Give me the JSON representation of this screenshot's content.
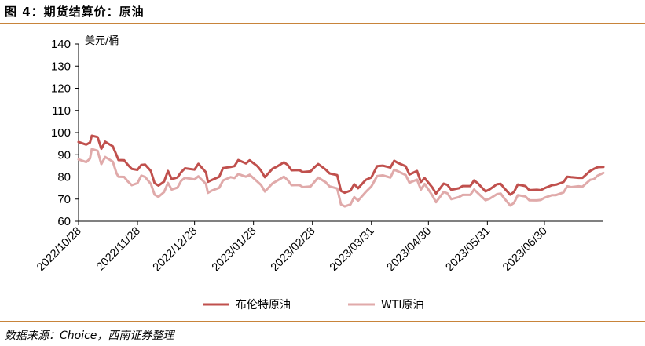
{
  "figure": {
    "title": "图 4：期货结算价：原油",
    "source": "数据来源：Choice，西南证券整理"
  },
  "colors": {
    "rule": "#c8843a",
    "brent": "#c0504d",
    "wti": "#e0aaaa",
    "axis": "#000000"
  },
  "chart_data": {
    "type": "line",
    "ylabel": "美元/桶",
    "ylim": [
      60,
      140
    ],
    "yticks": [
      60,
      70,
      80,
      90,
      100,
      110,
      120,
      130,
      140
    ],
    "xlim": [
      "2022-10-28",
      "2023-07-31"
    ],
    "xtick_labels": [
      "2022/10/28",
      "2022/11/28",
      "2022/12/28",
      "2023/01/28",
      "2023/02/28",
      "2023/03/31",
      "2023/04/30",
      "2023/05/31",
      "2023/06/30"
    ],
    "xtick_dates": [
      "2022-10-28",
      "2022-11-28",
      "2022-12-28",
      "2023-01-28",
      "2023-02-28",
      "2023-03-31",
      "2023-04-30",
      "2023-05-31",
      "2023-06-30"
    ],
    "grid": false,
    "legend_position": "bottom",
    "series": [
      {
        "name": "布伦特原油",
        "color": "#c0504d",
        "points": [
          [
            "2022-10-28",
            95.8
          ],
          [
            "2022-11-01",
            94.6
          ],
          [
            "2022-11-03",
            95.5
          ],
          [
            "2022-11-04",
            98.6
          ],
          [
            "2022-11-07",
            98.0
          ],
          [
            "2022-11-09",
            92.7
          ],
          [
            "2022-11-11",
            95.9
          ],
          [
            "2022-11-15",
            93.8
          ],
          [
            "2022-11-17",
            89.8
          ],
          [
            "2022-11-18",
            87.6
          ],
          [
            "2022-11-21",
            87.5
          ],
          [
            "2022-11-23",
            85.4
          ],
          [
            "2022-11-25",
            83.6
          ],
          [
            "2022-11-28",
            83.2
          ],
          [
            "2022-11-30",
            85.4
          ],
          [
            "2022-12-02",
            85.6
          ],
          [
            "2022-12-05",
            82.7
          ],
          [
            "2022-12-07",
            77.2
          ],
          [
            "2022-12-09",
            76.1
          ],
          [
            "2022-12-12",
            77.9
          ],
          [
            "2022-12-14",
            82.7
          ],
          [
            "2022-12-16",
            79.0
          ],
          [
            "2022-12-19",
            79.8
          ],
          [
            "2022-12-21",
            82.2
          ],
          [
            "2022-12-23",
            83.9
          ],
          [
            "2022-12-28",
            83.3
          ],
          [
            "2022-12-30",
            85.9
          ],
          [
            "2023-01-03",
            82.1
          ],
          [
            "2023-01-04",
            77.8
          ],
          [
            "2023-01-06",
            78.6
          ],
          [
            "2023-01-10",
            80.1
          ],
          [
            "2023-01-12",
            84.0
          ],
          [
            "2023-01-16",
            84.5
          ],
          [
            "2023-01-18",
            84.9
          ],
          [
            "2023-01-20",
            87.6
          ],
          [
            "2023-01-24",
            86.1
          ],
          [
            "2023-01-26",
            87.5
          ],
          [
            "2023-01-30",
            84.9
          ],
          [
            "2023-02-01",
            82.8
          ],
          [
            "2023-02-03",
            79.9
          ],
          [
            "2023-02-07",
            83.7
          ],
          [
            "2023-02-09",
            84.5
          ],
          [
            "2023-02-13",
            86.6
          ],
          [
            "2023-02-15",
            85.4
          ],
          [
            "2023-02-17",
            83.0
          ],
          [
            "2023-02-21",
            83.1
          ],
          [
            "2023-02-23",
            82.2
          ],
          [
            "2023-02-27",
            82.5
          ],
          [
            "2023-03-01",
            84.3
          ],
          [
            "2023-03-03",
            85.8
          ],
          [
            "2023-03-07",
            83.3
          ],
          [
            "2023-03-09",
            81.6
          ],
          [
            "2023-03-13",
            80.8
          ],
          [
            "2023-03-15",
            73.7
          ],
          [
            "2023-03-17",
            72.9
          ],
          [
            "2023-03-20",
            73.8
          ],
          [
            "2023-03-22",
            76.7
          ],
          [
            "2023-03-24",
            74.9
          ],
          [
            "2023-03-28",
            78.7
          ],
          [
            "2023-03-31",
            79.8
          ],
          [
            "2023-04-03",
            84.9
          ],
          [
            "2023-04-06",
            85.1
          ],
          [
            "2023-04-10",
            84.2
          ],
          [
            "2023-04-12",
            87.3
          ],
          [
            "2023-04-14",
            86.3
          ],
          [
            "2023-04-18",
            84.8
          ],
          [
            "2023-04-20",
            81.1
          ],
          [
            "2023-04-24",
            82.7
          ],
          [
            "2023-04-26",
            77.7
          ],
          [
            "2023-04-28",
            79.5
          ],
          [
            "2023-05-02",
            75.3
          ],
          [
            "2023-05-04",
            72.5
          ],
          [
            "2023-05-08",
            77.0
          ],
          [
            "2023-05-10",
            76.4
          ],
          [
            "2023-05-12",
            74.2
          ],
          [
            "2023-05-16",
            74.9
          ],
          [
            "2023-05-18",
            75.9
          ],
          [
            "2023-05-22",
            75.9
          ],
          [
            "2023-05-24",
            78.4
          ],
          [
            "2023-05-26",
            77.1
          ],
          [
            "2023-05-30",
            73.5
          ],
          [
            "2023-06-01",
            74.3
          ],
          [
            "2023-06-05",
            76.7
          ],
          [
            "2023-06-07",
            76.9
          ],
          [
            "2023-06-09",
            74.8
          ],
          [
            "2023-06-12",
            72.0
          ],
          [
            "2023-06-14",
            73.2
          ],
          [
            "2023-06-16",
            76.6
          ],
          [
            "2023-06-20",
            75.9
          ],
          [
            "2023-06-22",
            74.0
          ],
          [
            "2023-06-26",
            74.2
          ],
          [
            "2023-06-28",
            74.0
          ],
          [
            "2023-06-30",
            74.9
          ],
          [
            "2023-07-04",
            76.3
          ],
          [
            "2023-07-06",
            76.5
          ],
          [
            "2023-07-10",
            77.7
          ],
          [
            "2023-07-12",
            80.1
          ],
          [
            "2023-07-14",
            79.9
          ],
          [
            "2023-07-18",
            79.6
          ],
          [
            "2023-07-20",
            79.6
          ],
          [
            "2023-07-24",
            82.7
          ],
          [
            "2023-07-26",
            83.6
          ],
          [
            "2023-07-28",
            84.4
          ],
          [
            "2023-07-31",
            84.5
          ]
        ]
      },
      {
        "name": "WTI原油",
        "color": "#e0aaaa",
        "points": [
          [
            "2022-10-28",
            87.9
          ],
          [
            "2022-11-01",
            86.7
          ],
          [
            "2022-11-03",
            88.2
          ],
          [
            "2022-11-04",
            92.6
          ],
          [
            "2022-11-07",
            91.8
          ],
          [
            "2022-11-09",
            85.8
          ],
          [
            "2022-11-11",
            89.0
          ],
          [
            "2022-11-15",
            86.9
          ],
          [
            "2022-11-17",
            81.6
          ],
          [
            "2022-11-18",
            80.1
          ],
          [
            "2022-11-21",
            80.0
          ],
          [
            "2022-11-23",
            77.9
          ],
          [
            "2022-11-25",
            76.3
          ],
          [
            "2022-11-28",
            77.2
          ],
          [
            "2022-11-30",
            80.6
          ],
          [
            "2022-12-02",
            80.0
          ],
          [
            "2022-12-05",
            76.9
          ],
          [
            "2022-12-07",
            72.0
          ],
          [
            "2022-12-09",
            71.0
          ],
          [
            "2022-12-12",
            73.2
          ],
          [
            "2022-12-14",
            77.3
          ],
          [
            "2022-12-16",
            74.3
          ],
          [
            "2022-12-19",
            75.2
          ],
          [
            "2022-12-21",
            78.3
          ],
          [
            "2022-12-23",
            79.6
          ],
          [
            "2022-12-28",
            78.9
          ],
          [
            "2022-12-30",
            80.3
          ],
          [
            "2023-01-03",
            76.9
          ],
          [
            "2023-01-04",
            72.8
          ],
          [
            "2023-01-06",
            73.8
          ],
          [
            "2023-01-10",
            75.1
          ],
          [
            "2023-01-12",
            78.4
          ],
          [
            "2023-01-16",
            79.9
          ],
          [
            "2023-01-18",
            79.5
          ],
          [
            "2023-01-20",
            81.3
          ],
          [
            "2023-01-24",
            80.1
          ],
          [
            "2023-01-26",
            81.0
          ],
          [
            "2023-01-30",
            77.9
          ],
          [
            "2023-02-01",
            76.4
          ],
          [
            "2023-02-03",
            73.4
          ],
          [
            "2023-02-07",
            77.1
          ],
          [
            "2023-02-09",
            78.1
          ],
          [
            "2023-02-13",
            80.1
          ],
          [
            "2023-02-15",
            78.6
          ],
          [
            "2023-02-17",
            76.3
          ],
          [
            "2023-02-21",
            76.4
          ],
          [
            "2023-02-23",
            75.4
          ],
          [
            "2023-02-27",
            75.7
          ],
          [
            "2023-03-01",
            77.7
          ],
          [
            "2023-03-03",
            79.7
          ],
          [
            "2023-03-07",
            77.6
          ],
          [
            "2023-03-09",
            75.7
          ],
          [
            "2023-03-13",
            74.8
          ],
          [
            "2023-03-15",
            67.6
          ],
          [
            "2023-03-17",
            66.7
          ],
          [
            "2023-03-20",
            67.6
          ],
          [
            "2023-03-22",
            70.9
          ],
          [
            "2023-03-24",
            69.3
          ],
          [
            "2023-03-28",
            73.2
          ],
          [
            "2023-03-31",
            75.7
          ],
          [
            "2023-04-03",
            80.4
          ],
          [
            "2023-04-06",
            80.7
          ],
          [
            "2023-04-10",
            79.7
          ],
          [
            "2023-04-12",
            83.3
          ],
          [
            "2023-04-14",
            82.5
          ],
          [
            "2023-04-18",
            80.9
          ],
          [
            "2023-04-20",
            77.4
          ],
          [
            "2023-04-24",
            78.8
          ],
          [
            "2023-04-26",
            74.3
          ],
          [
            "2023-04-28",
            76.8
          ],
          [
            "2023-05-02",
            71.7
          ],
          [
            "2023-05-04",
            68.6
          ],
          [
            "2023-05-08",
            73.2
          ],
          [
            "2023-05-10",
            72.6
          ],
          [
            "2023-05-12",
            70.0
          ],
          [
            "2023-05-16",
            70.9
          ],
          [
            "2023-05-18",
            71.9
          ],
          [
            "2023-05-22",
            71.9
          ],
          [
            "2023-05-24",
            74.3
          ],
          [
            "2023-05-26",
            72.7
          ],
          [
            "2023-05-30",
            69.5
          ],
          [
            "2023-06-01",
            70.1
          ],
          [
            "2023-06-05",
            72.2
          ],
          [
            "2023-06-07",
            72.5
          ],
          [
            "2023-06-09",
            70.2
          ],
          [
            "2023-06-12",
            67.1
          ],
          [
            "2023-06-14",
            68.3
          ],
          [
            "2023-06-16",
            71.8
          ],
          [
            "2023-06-20",
            71.2
          ],
          [
            "2023-06-22",
            69.5
          ],
          [
            "2023-06-26",
            69.4
          ],
          [
            "2023-06-28",
            69.6
          ],
          [
            "2023-06-30",
            70.6
          ],
          [
            "2023-07-04",
            71.8
          ],
          [
            "2023-07-06",
            71.8
          ],
          [
            "2023-07-10",
            73.0
          ],
          [
            "2023-07-12",
            75.8
          ],
          [
            "2023-07-14",
            75.4
          ],
          [
            "2023-07-18",
            75.8
          ],
          [
            "2023-07-20",
            75.6
          ],
          [
            "2023-07-24",
            78.7
          ],
          [
            "2023-07-26",
            79.0
          ],
          [
            "2023-07-28",
            80.6
          ],
          [
            "2023-07-31",
            81.8
          ]
        ]
      }
    ]
  }
}
